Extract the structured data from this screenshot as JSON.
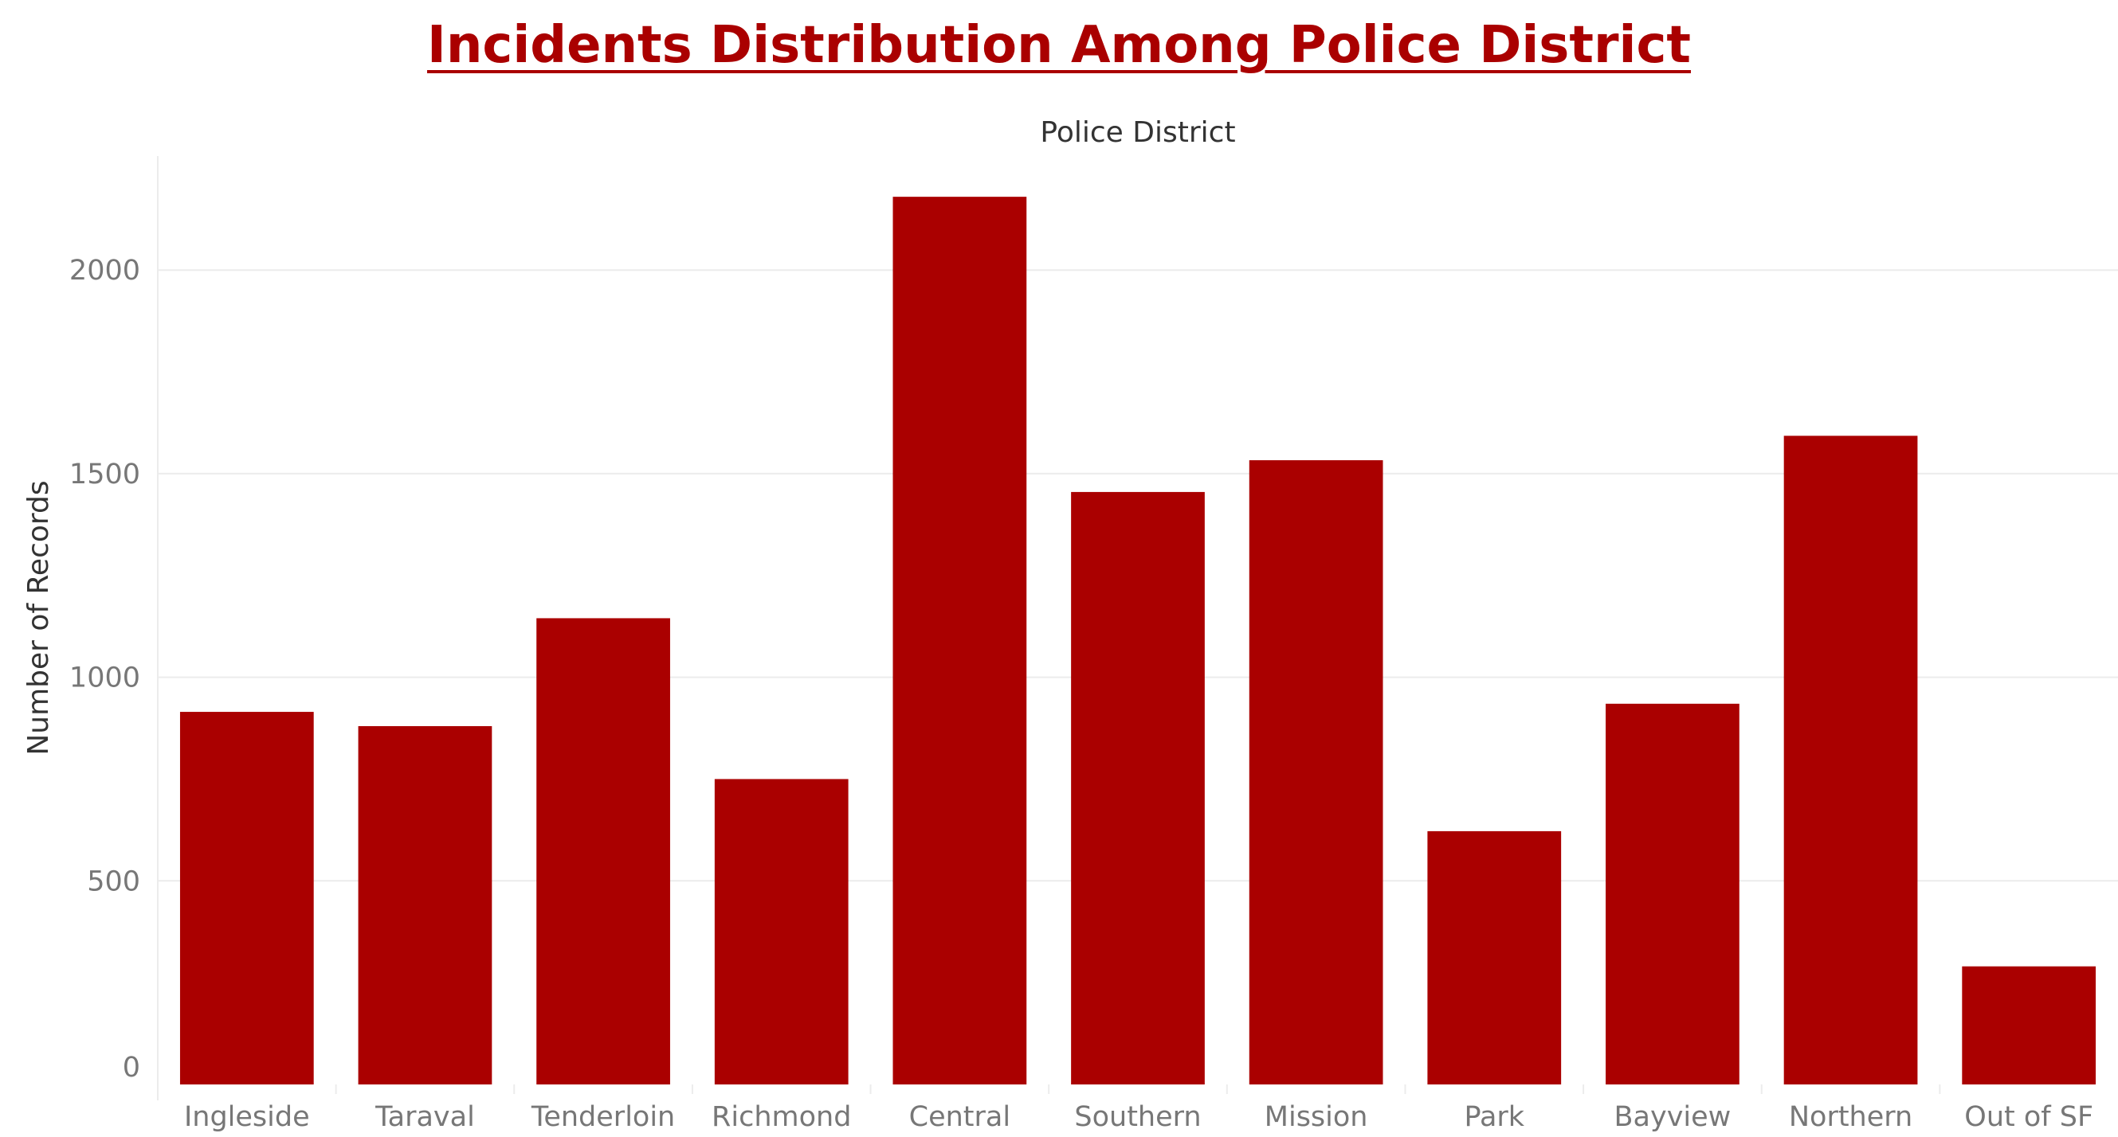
{
  "colors": {
    "bar": "#aa0000",
    "title": "#aa0000",
    "grid": "#ececec",
    "tick_text": "#777777",
    "axis_title_text": "#333333"
  },
  "chart_data": {
    "type": "bar",
    "title": "Incidents Distribution Among Police District",
    "xlabel": "Police District",
    "ylabel": "Number of Records",
    "categories": [
      "Ingleside",
      "Taraval",
      "Tenderloin",
      "Richmond",
      "Central",
      "Southern",
      "Mission",
      "Park",
      "Bayview",
      "Northern",
      "Out of SF"
    ],
    "values": [
      915,
      880,
      1145,
      750,
      2180,
      1455,
      1533,
      622,
      935,
      1593,
      290
    ],
    "ylim": [
      0,
      2280
    ],
    "yticks": [
      0,
      500,
      1000,
      1500,
      2000
    ],
    "grid": true,
    "legend": "none"
  }
}
